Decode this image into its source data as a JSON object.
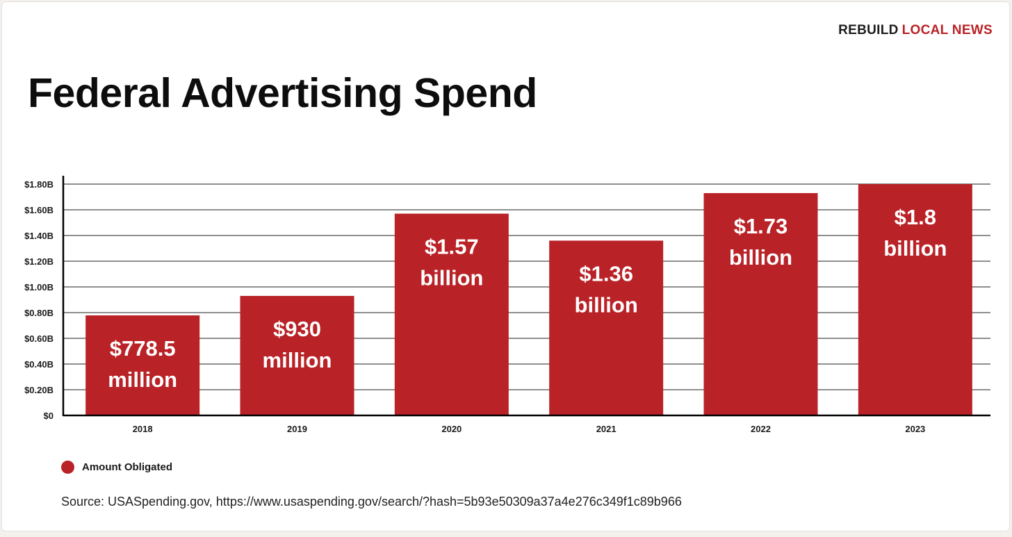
{
  "brand": {
    "part1": "REBUILD",
    "part2": "LOCAL NEWS"
  },
  "colors": {
    "bar": "#b92227",
    "grid": "#4a4a4a",
    "axis": "#000000",
    "brand_accent": "#b92227"
  },
  "chart_data": {
    "type": "bar",
    "title": "Federal Advertising Spend",
    "categories": [
      "2018",
      "2019",
      "2020",
      "2021",
      "2022",
      "2023"
    ],
    "series": [
      {
        "name": "Amount Obligated",
        "values": [
          0.7785,
          0.93,
          1.57,
          1.36,
          1.73,
          1.8
        ]
      }
    ],
    "data_labels": [
      [
        "$778.5",
        "million"
      ],
      [
        "$930",
        "million"
      ],
      [
        "$1.57",
        "billion"
      ],
      [
        "$1.36",
        "billion"
      ],
      [
        "$1.73",
        "billion"
      ],
      [
        "$1.8",
        "billion"
      ]
    ],
    "ylim": [
      0,
      1.8
    ],
    "yticks": [
      0,
      0.2,
      0.4,
      0.6,
      0.8,
      1.0,
      1.2,
      1.4,
      1.6,
      1.8
    ],
    "ytick_labels": [
      "$0",
      "$0.20B",
      "$0.40B",
      "$0.60B",
      "$0.80B",
      "$1.00B",
      "$1.20B",
      "$1.40B",
      "$1.60B",
      "$1.80B"
    ],
    "xlabel": "",
    "ylabel": "",
    "grid": true,
    "legend_position": "bottom-left"
  },
  "source": "Source: USASpending.gov, https://www.usaspending.gov/search/?hash=5b93e50309a37a4e276c349f1c89b966"
}
